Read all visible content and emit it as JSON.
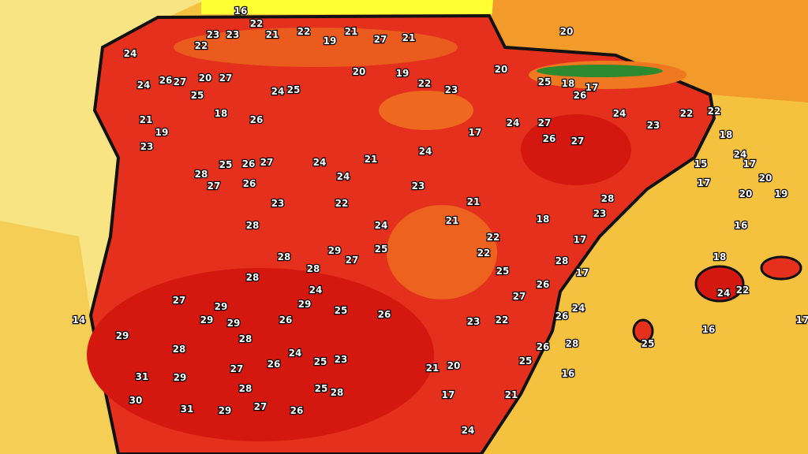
{
  "map": {
    "colors": {
      "atlantic": "#f8e483",
      "mediterranean": "#f4c23e",
      "france": "#ffff33",
      "hot": "#e4301c",
      "hotter": "#d41810",
      "warm": "#f07820",
      "mountain_green": "#2e8a2e"
    },
    "labels": [
      "16",
      "22",
      "23",
      "23",
      "24",
      "22",
      "21",
      "22",
      "19",
      "21",
      "27",
      "21",
      "20",
      "19",
      "20",
      "23",
      "22",
      "26",
      "27",
      "25",
      "20",
      "27",
      "24",
      "25",
      "24",
      "26",
      "21",
      "19",
      "18",
      "17",
      "20",
      "25",
      "26",
      "18",
      "17",
      "27",
      "24",
      "26",
      "27",
      "24",
      "23",
      "22",
      "22",
      "23",
      "27",
      "26",
      "25",
      "24",
      "28",
      "26",
      "27",
      "21",
      "23",
      "21",
      "24",
      "24",
      "22",
      "24",
      "23",
      "29",
      "25",
      "28",
      "28",
      "28",
      "27",
      "29",
      "26",
      "24",
      "27",
      "25",
      "26",
      "23",
      "29",
      "30",
      "31",
      "29",
      "28",
      "29",
      "29",
      "28",
      "27",
      "26",
      "24",
      "25",
      "21",
      "20",
      "22",
      "25",
      "27",
      "26",
      "28",
      "24",
      "22",
      "26",
      "25",
      "26",
      "28",
      "22",
      "21",
      "18",
      "17",
      "16",
      "18",
      "22",
      "24",
      "25",
      "20",
      "17",
      "15",
      "18",
      "17",
      "19",
      "20",
      "23",
      "28",
      "29",
      "27",
      "26",
      "28",
      "31",
      "25",
      "23",
      "24",
      "21",
      "17",
      "16",
      "17",
      "14",
      "17",
      "16",
      "24",
      "28",
      "29",
      "28"
    ]
  }
}
